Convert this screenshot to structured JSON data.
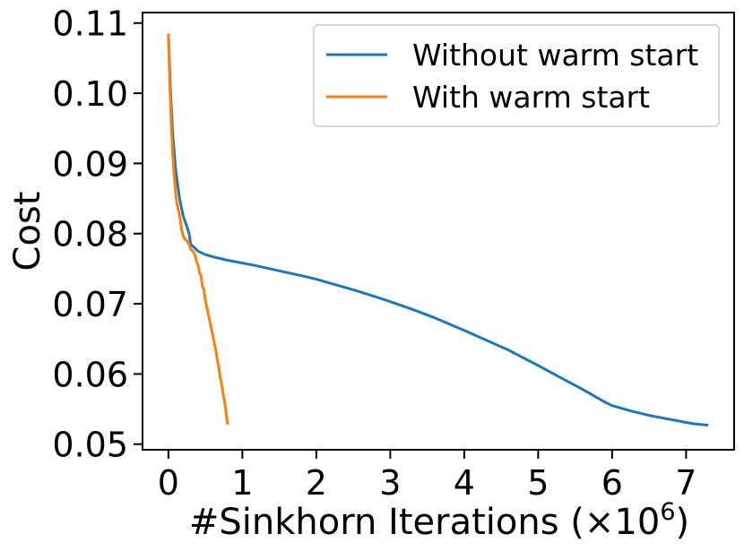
{
  "chart_data": {
    "type": "line",
    "title": "",
    "xlabel": "#Sinkhorn Iterations (×10⁶)",
    "xlabel_main": "#Sinkhorn Iterations (×10",
    "xlabel_exp": "6",
    "xlabel_close": ")",
    "ylabel": "Cost",
    "xlim": [
      -0.35,
      7.65
    ],
    "ylim": [
      0.0492,
      0.1115
    ],
    "xticks": [
      0,
      1,
      2,
      3,
      4,
      5,
      6,
      7
    ],
    "xtick_labels": [
      "0",
      "1",
      "2",
      "3",
      "4",
      "5",
      "6",
      "7"
    ],
    "yticks": [
      0.05,
      0.06,
      0.07,
      0.08,
      0.09,
      0.1,
      0.11
    ],
    "ytick_labels": [
      "0.05",
      "0.06",
      "0.07",
      "0.08",
      "0.09",
      "0.10",
      "0.11"
    ],
    "grid": false,
    "legend_position": "top-right",
    "series": [
      {
        "name": "Without warm start",
        "color": "#1f77b4",
        "x": [
          0.0,
          0.03,
          0.06,
          0.1,
          0.15,
          0.2,
          0.25,
          0.28,
          0.3,
          0.35,
          0.4,
          0.5,
          0.6,
          0.8,
          1.0,
          1.2,
          1.5,
          1.8,
          2.0,
          2.2,
          2.5,
          2.8,
          3.0,
          3.3,
          3.6,
          4.0,
          4.3,
          4.6,
          5.0,
          5.3,
          5.6,
          5.9,
          6.0,
          6.2,
          6.3,
          6.5,
          6.7,
          6.9,
          7.0,
          7.1,
          7.2,
          7.3
        ],
        "y": [
          0.1085,
          0.1,
          0.094,
          0.089,
          0.085,
          0.0825,
          0.081,
          0.08,
          0.0785,
          0.078,
          0.0775,
          0.077,
          0.0767,
          0.0762,
          0.0758,
          0.0754,
          0.0747,
          0.074,
          0.0735,
          0.0729,
          0.072,
          0.071,
          0.0703,
          0.0692,
          0.068,
          0.0662,
          0.0648,
          0.0634,
          0.0612,
          0.0595,
          0.0578,
          0.056,
          0.0555,
          0.0549,
          0.0546,
          0.0541,
          0.0537,
          0.0533,
          0.0531,
          0.0529,
          0.0528,
          0.0527
        ]
      },
      {
        "name": "With warm start",
        "color": "#ff7f0e",
        "x": [
          0.0,
          0.02,
          0.04,
          0.06,
          0.08,
          0.1,
          0.12,
          0.14,
          0.16,
          0.18,
          0.2,
          0.22,
          0.25,
          0.28,
          0.3,
          0.33,
          0.36,
          0.38,
          0.4,
          0.42,
          0.44,
          0.46,
          0.48,
          0.5,
          0.52,
          0.54,
          0.56,
          0.58,
          0.6,
          0.62,
          0.64,
          0.66,
          0.68,
          0.7,
          0.72,
          0.74,
          0.76,
          0.78,
          0.8
        ],
        "y": [
          0.1085,
          0.101,
          0.095,
          0.091,
          0.088,
          0.0855,
          0.084,
          0.0832,
          0.082,
          0.0805,
          0.0797,
          0.0792,
          0.079,
          0.0785,
          0.0778,
          0.0775,
          0.077,
          0.076,
          0.0755,
          0.0745,
          0.074,
          0.0725,
          0.072,
          0.0705,
          0.0695,
          0.0685,
          0.0675,
          0.0665,
          0.0655,
          0.0645,
          0.0635,
          0.062,
          0.061,
          0.0595,
          0.0585,
          0.0572,
          0.056,
          0.0545,
          0.0528
        ]
      }
    ]
  }
}
